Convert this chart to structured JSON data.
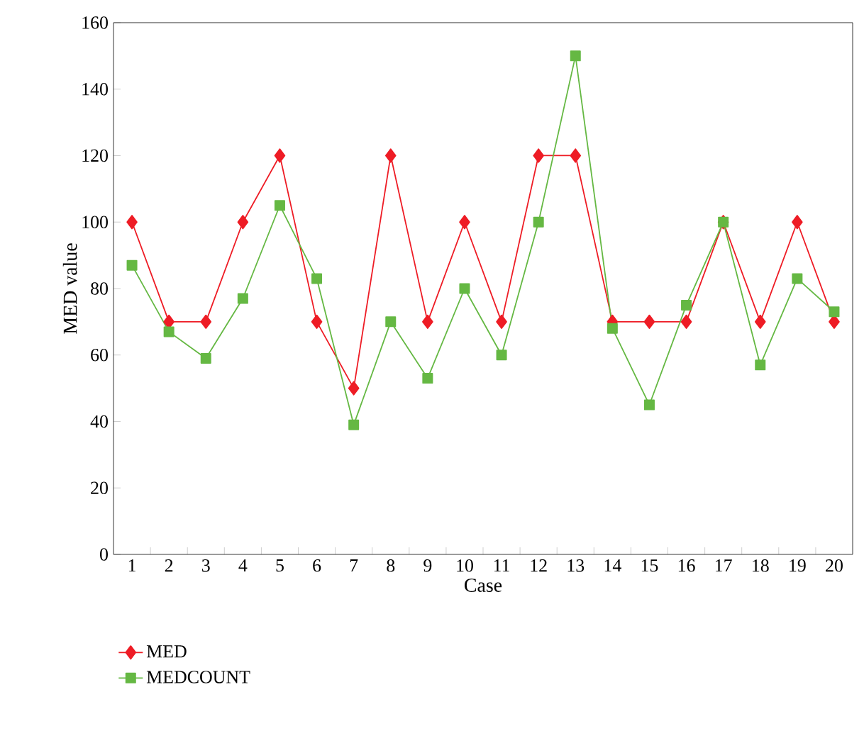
{
  "chart_data": {
    "type": "line",
    "xlabel": "Case",
    "ylabel": "MED value",
    "categories": [
      "1",
      "2",
      "3",
      "4",
      "5",
      "6",
      "7",
      "8",
      "9",
      "10",
      "11",
      "12",
      "13",
      "14",
      "15",
      "16",
      "17",
      "18",
      "19",
      "20"
    ],
    "series": [
      {
        "name": "MED",
        "color": "#ee1c25",
        "marker": "diamond",
        "values": [
          100,
          70,
          70,
          100,
          120,
          70,
          50,
          120,
          70,
          100,
          70,
          120,
          120,
          70,
          70,
          70,
          100,
          70,
          100,
          70
        ]
      },
      {
        "name": "MEDCOUNT",
        "color": "#65b843",
        "marker": "square",
        "values": [
          87,
          67,
          59,
          77,
          105,
          83,
          39,
          70,
          53,
          80,
          60,
          100,
          150,
          68,
          45,
          75,
          100,
          57,
          83,
          73
        ]
      }
    ],
    "ylim": [
      0,
      160
    ],
    "yticks": [
      0,
      20,
      40,
      60,
      80,
      100,
      120,
      140,
      160
    ],
    "grid": false,
    "legend": "bottom left",
    "line_style": "solid"
  }
}
